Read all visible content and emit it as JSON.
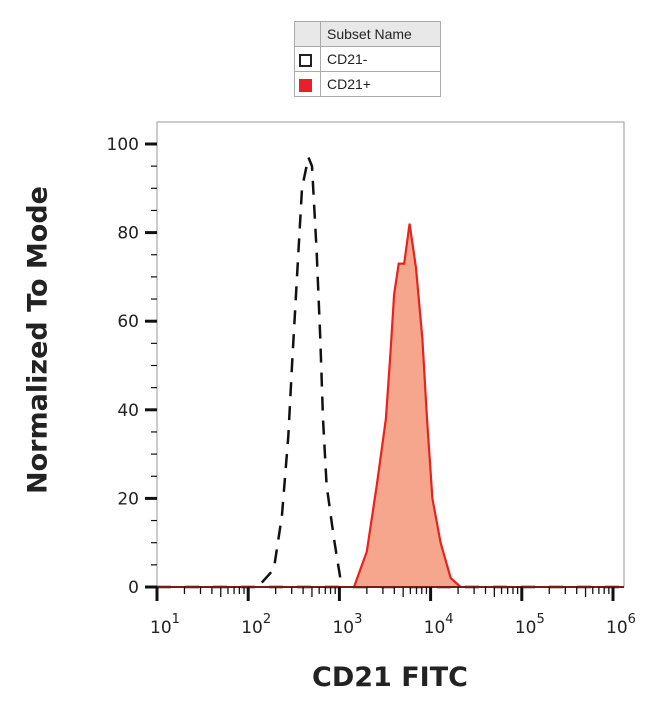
{
  "chart_data": {
    "type": "area",
    "title": "",
    "xlabel": "CD21 FITC",
    "ylabel": "Normalized To Mode",
    "x_scale": "log",
    "xlim": [
      10,
      1000000
    ],
    "ylim": [
      0,
      105
    ],
    "x_ticks": [
      10,
      100,
      1000,
      10000,
      100000,
      1000000
    ],
    "x_tick_labels": [
      {
        "base": "10",
        "exp": "1"
      },
      {
        "base": "10",
        "exp": "2"
      },
      {
        "base": "10",
        "exp": "3"
      },
      {
        "base": "10",
        "exp": "4"
      },
      {
        "base": "10",
        "exp": "5"
      },
      {
        "base": "10",
        "exp": "6"
      }
    ],
    "y_ticks": [
      0,
      20,
      40,
      60,
      80,
      100
    ],
    "y_tick_labels": [
      "0",
      "20",
      "40",
      "60",
      "80",
      "100"
    ],
    "grid": false,
    "legend": {
      "placement": "top",
      "header": "Subset Name",
      "entries": [
        {
          "label": "CD21-",
          "swatch": "outline",
          "color": "#222222"
        },
        {
          "label": "CD21+",
          "swatch": "filled",
          "color": "#e8202a"
        }
      ]
    },
    "series": [
      {
        "name": "CD21-",
        "style": "dashed-line",
        "color": "#111111",
        "x": [
          141,
          191,
          234,
          275,
          302,
          347,
          389,
          457,
          501,
          562,
          617,
          661,
          724,
          871,
          1023,
          1122
        ],
        "y": [
          1,
          4,
          16,
          34,
          50,
          72,
          90,
          97,
          95,
          76,
          56,
          38,
          23,
          11,
          2,
          0
        ]
      },
      {
        "name": "CD21+",
        "style": "filled-area",
        "color": "#e8221d",
        "fill": "#f5a68c",
        "x": [
          1445,
          1995,
          2570,
          3236,
          3631,
          3981,
          4467,
          5129,
          5888,
          6918,
          8128,
          9120,
          10471,
          12882,
          16596,
          21380
        ],
        "y": [
          0,
          8,
          23,
          38,
          53,
          66,
          73,
          73,
          82,
          72,
          56,
          38,
          20,
          10,
          2,
          0
        ]
      }
    ]
  }
}
